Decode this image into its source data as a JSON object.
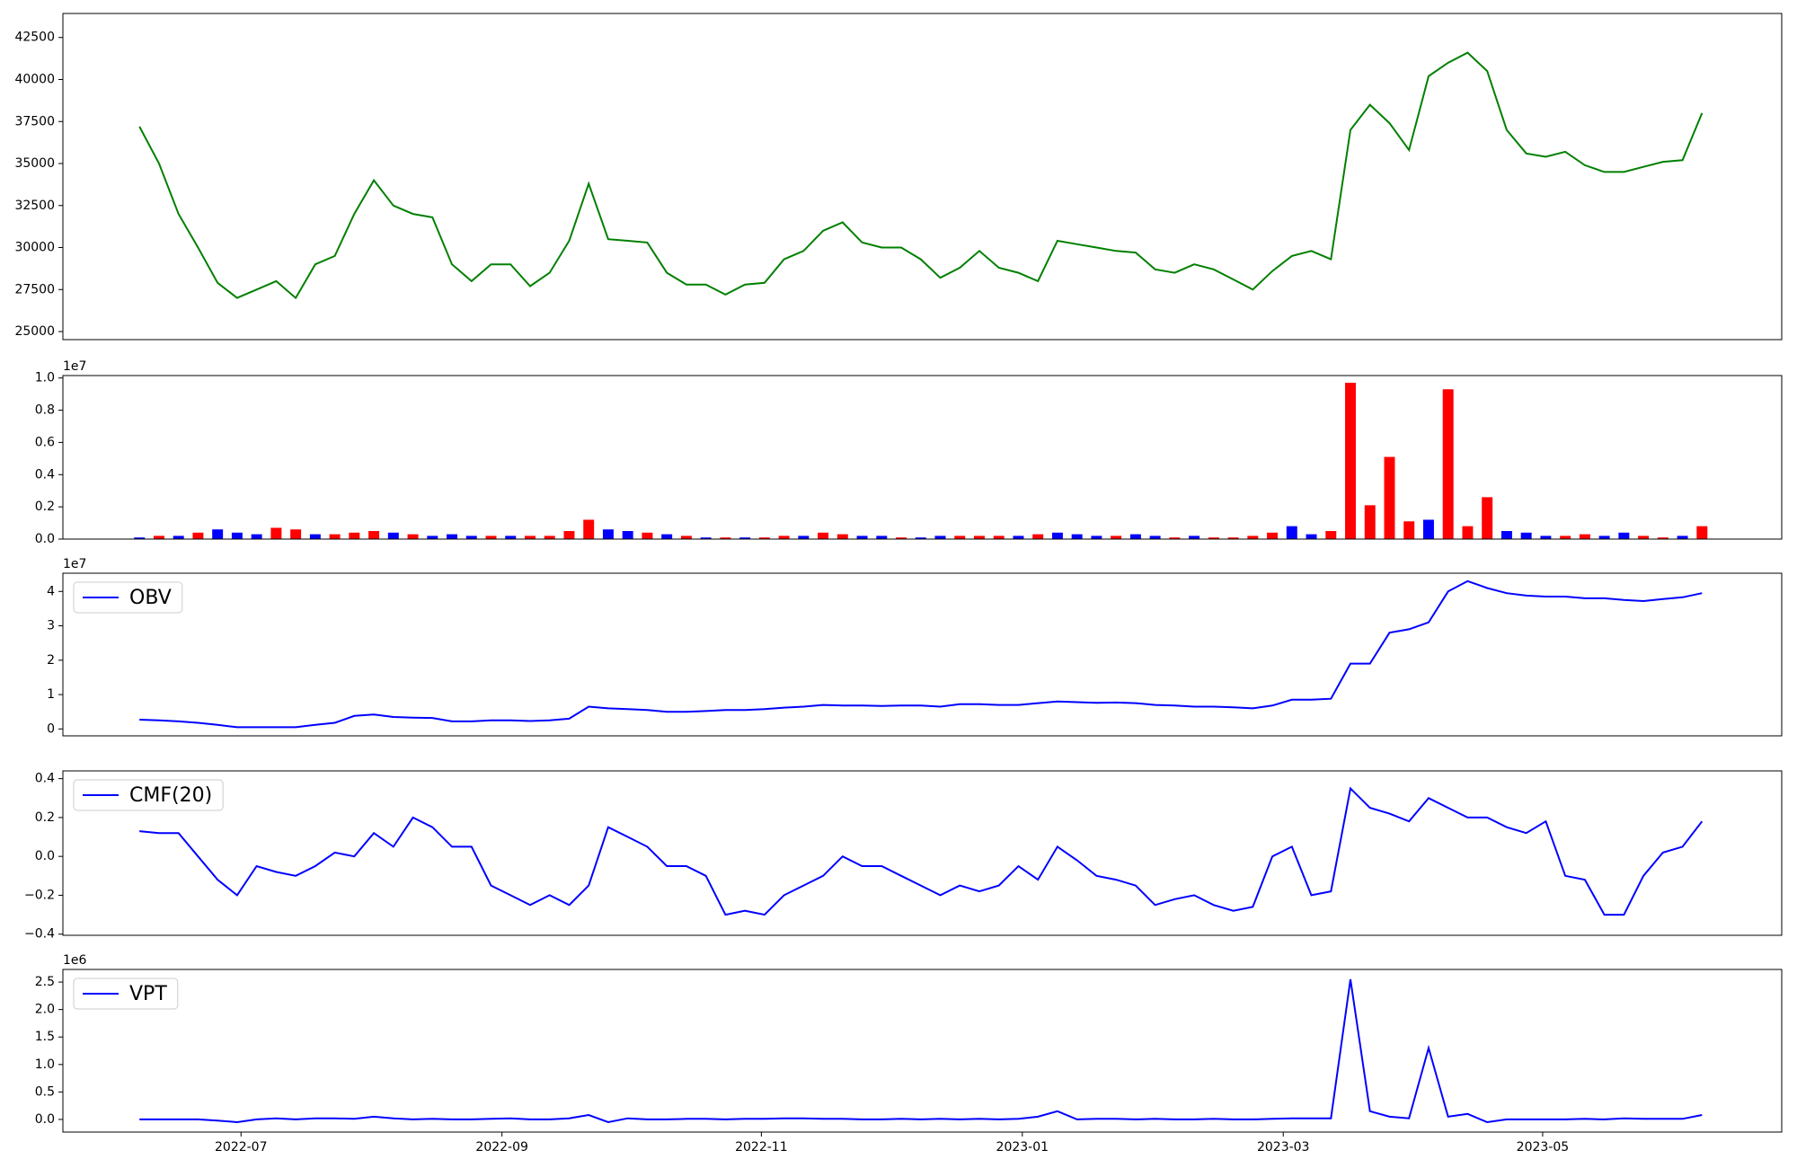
{
  "chart_data": [
    {
      "type": "line",
      "color": "green",
      "x": [
        2022.435,
        2022.4475,
        2022.46,
        2022.4725,
        2022.485,
        2022.4975,
        2022.51,
        2022.5225,
        2022.535,
        2022.5475,
        2022.56,
        2022.5725,
        2022.585,
        2022.5975,
        2022.61,
        2022.6225,
        2022.635,
        2022.6475,
        2022.66,
        2022.6725,
        2022.685,
        2022.6975,
        2022.71,
        2022.7225,
        2022.735,
        2022.7475,
        2022.76,
        2022.7725,
        2022.785,
        2022.7975,
        2022.81,
        2022.8225,
        2022.835,
        2022.8475,
        2022.86,
        2022.8725,
        2022.885,
        2022.8975,
        2022.91,
        2022.9225,
        2022.935,
        2022.9475,
        2022.96,
        2022.9725,
        2022.985,
        2022.9975,
        2023.01,
        2023.0225,
        2023.035,
        2023.0475,
        2023.06,
        2023.0725,
        2023.085,
        2023.0975,
        2023.11,
        2023.1225,
        2023.135,
        2023.1475,
        2023.16,
        2023.1725,
        2023.185,
        2023.1975,
        2023.21,
        2023.2225,
        2023.235,
        2023.2475,
        2023.26,
        2023.2725,
        2023.285,
        2023.2975,
        2023.31,
        2023.3225,
        2023.335,
        2023.3475,
        2023.36,
        2023.3725,
        2023.385,
        2023.3975,
        2023.41,
        2023.4225,
        2023.435
      ],
      "values": [
        37200,
        35000,
        32000,
        30000,
        27900,
        27000,
        27500,
        28000,
        27000,
        29000,
        29500,
        32000,
        34000,
        32500,
        32000,
        31800,
        29000,
        28000,
        29000,
        29000,
        27700,
        28500,
        30400,
        33800,
        30500,
        30400,
        30300,
        28500,
        27800,
        27800,
        27200,
        27800,
        27900,
        29300,
        29800,
        31000,
        31500,
        30300,
        30000,
        30000,
        29300,
        28200,
        28800,
        29800,
        28800,
        28500,
        28000,
        30400,
        30200,
        30000,
        29800,
        29700,
        28700,
        28500,
        29000,
        28700,
        28100,
        27500,
        28600,
        29500,
        29800,
        29300,
        37000,
        38500,
        37400,
        35800,
        40200,
        41000,
        41600,
        40500,
        37000,
        35600,
        35400,
        35700,
        34900,
        34500,
        34500,
        34800,
        35100,
        35200,
        38000
      ],
      "xlim": [
        2022.386,
        2023.486
      ],
      "ylim": [
        24520,
        43930
      ],
      "yticks": [
        25000,
        27500,
        30000,
        32500,
        35000,
        37500,
        40000,
        42500
      ]
    },
    {
      "type": "bar",
      "y_offset_label": "1e7",
      "x": [
        2022.435,
        2022.4475,
        2022.46,
        2022.4725,
        2022.485,
        2022.4975,
        2022.51,
        2022.5225,
        2022.535,
        2022.5475,
        2022.56,
        2022.5725,
        2022.585,
        2022.5975,
        2022.61,
        2022.6225,
        2022.635,
        2022.6475,
        2022.66,
        2022.6725,
        2022.685,
        2022.6975,
        2022.71,
        2022.7225,
        2022.735,
        2022.7475,
        2022.76,
        2022.7725,
        2022.785,
        2022.7975,
        2022.81,
        2022.8225,
        2022.835,
        2022.8475,
        2022.86,
        2022.8725,
        2022.885,
        2022.8975,
        2022.91,
        2022.9225,
        2022.935,
        2022.9475,
        2022.96,
        2022.9725,
        2022.985,
        2022.9975,
        2023.01,
        2023.0225,
        2023.035,
        2023.0475,
        2023.06,
        2023.0725,
        2023.085,
        2023.0975,
        2023.11,
        2023.1225,
        2023.135,
        2023.1475,
        2023.16,
        2023.1725,
        2023.185,
        2023.1975,
        2023.21,
        2023.2225,
        2023.235,
        2023.2475,
        2023.26,
        2023.2725,
        2023.285,
        2023.2975,
        2023.31,
        2023.3225,
        2023.335,
        2023.3475,
        2023.36,
        2023.3725,
        2023.385,
        2023.3975,
        2023.41,
        2023.4225,
        2023.435
      ],
      "values": [
        0.01,
        0.02,
        0.02,
        0.04,
        0.06,
        0.04,
        0.03,
        0.07,
        0.06,
        0.03,
        0.03,
        0.04,
        0.05,
        0.04,
        0.03,
        0.02,
        0.03,
        0.02,
        0.02,
        0.02,
        0.02,
        0.02,
        0.05,
        0.12,
        0.06,
        0.05,
        0.04,
        0.03,
        0.02,
        0.01,
        0.01,
        0.01,
        0.01,
        0.02,
        0.02,
        0.04,
        0.03,
        0.02,
        0.02,
        0.01,
        0.01,
        0.02,
        0.02,
        0.02,
        0.02,
        0.02,
        0.03,
        0.04,
        0.03,
        0.02,
        0.02,
        0.03,
        0.02,
        0.01,
        0.02,
        0.01,
        0.01,
        0.02,
        0.04,
        0.08,
        0.03,
        0.05,
        0.97,
        0.21,
        0.51,
        0.11,
        0.12,
        0.93,
        0.08,
        0.26,
        0.05,
        0.04,
        0.02,
        0.02,
        0.03,
        0.02,
        0.04,
        0.02,
        0.01,
        0.02,
        0.08
      ],
      "colors": [
        "blue",
        "red",
        "blue",
        "red",
        "blue",
        "blue",
        "blue",
        "red",
        "red",
        "blue",
        "red",
        "red",
        "red",
        "blue",
        "red",
        "blue",
        "blue",
        "blue",
        "red",
        "blue",
        "red",
        "red",
        "red",
        "red",
        "blue",
        "blue",
        "red",
        "blue",
        "red",
        "blue",
        "red",
        "blue",
        "red",
        "red",
        "blue",
        "red",
        "red",
        "blue",
        "blue",
        "red",
        "blue",
        "blue",
        "red",
        "red",
        "red",
        "blue",
        "red",
        "blue",
        "blue",
        "blue",
        "red",
        "blue",
        "blue",
        "red",
        "blue",
        "red",
        "red",
        "red",
        "red",
        "blue",
        "blue",
        "red",
        "red",
        "red",
        "red",
        "red",
        "blue",
        "red",
        "red",
        "red",
        "blue",
        "blue",
        "blue",
        "red",
        "red",
        "blue",
        "blue",
        "red",
        "red",
        "blue",
        "red"
      ],
      "xlim": [
        2022.386,
        2023.486
      ],
      "ylim": [
        0,
        1.015
      ],
      "yticks": [
        {
          "value": 0,
          "label": "0.0"
        },
        {
          "value": 0.2,
          "label": "0.2"
        },
        {
          "value": 0.4,
          "label": "0.4"
        },
        {
          "value": 0.6,
          "label": "0.6"
        },
        {
          "value": 0.8,
          "label": "0.8"
        },
        {
          "value": 1,
          "label": "1.0"
        }
      ]
    },
    {
      "type": "line",
      "y_offset_label": "1e7",
      "legend": "upper left",
      "x": [
        2022.435,
        2022.4475,
        2022.46,
        2022.4725,
        2022.485,
        2022.4975,
        2022.51,
        2022.5225,
        2022.535,
        2022.5475,
        2022.56,
        2022.5725,
        2022.585,
        2022.5975,
        2022.61,
        2022.6225,
        2022.635,
        2022.6475,
        2022.66,
        2022.6725,
        2022.685,
        2022.6975,
        2022.71,
        2022.7225,
        2022.735,
        2022.7475,
        2022.76,
        2022.7725,
        2022.785,
        2022.7975,
        2022.81,
        2022.8225,
        2022.835,
        2022.8475,
        2022.86,
        2022.8725,
        2022.885,
        2022.8975,
        2022.91,
        2022.9225,
        2022.935,
        2022.9475,
        2022.96,
        2022.9725,
        2022.985,
        2022.9975,
        2023.01,
        2023.0225,
        2023.035,
        2023.0475,
        2023.06,
        2023.0725,
        2023.085,
        2023.0975,
        2023.11,
        2023.1225,
        2023.135,
        2023.1475,
        2023.16,
        2023.1725,
        2023.185,
        2023.1975,
        2023.21,
        2023.2225,
        2023.235,
        2023.2475,
        2023.26,
        2023.2725,
        2023.285,
        2023.2975,
        2023.31,
        2023.3225,
        2023.335,
        2023.3475,
        2023.36,
        2023.3725,
        2023.385,
        2023.3975,
        2023.41,
        2023.4225,
        2023.435
      ],
      "series": [
        {
          "name": "OBV",
          "color": "blue",
          "values": [
            0.27,
            0.25,
            0.22,
            0.18,
            0.12,
            0.05,
            0.05,
            0.05,
            0.05,
            0.12,
            0.18,
            0.38,
            0.42,
            0.35,
            0.33,
            0.32,
            0.22,
            0.22,
            0.25,
            0.25,
            0.23,
            0.25,
            0.3,
            0.65,
            0.6,
            0.58,
            0.55,
            0.5,
            0.5,
            0.52,
            0.55,
            0.55,
            0.58,
            0.62,
            0.65,
            0.7,
            0.68,
            0.68,
            0.67,
            0.68,
            0.68,
            0.65,
            0.72,
            0.72,
            0.7,
            0.7,
            0.75,
            0.8,
            0.78,
            0.76,
            0.77,
            0.75,
            0.7,
            0.68,
            0.65,
            0.65,
            0.63,
            0.6,
            0.68,
            0.85,
            0.85,
            0.88,
            1.9,
            1.9,
            2.8,
            2.9,
            3.1,
            4.0,
            4.3,
            4.1,
            3.95,
            3.88,
            3.85,
            3.85,
            3.8,
            3.8,
            3.75,
            3.72,
            3.78,
            3.83,
            3.95
          ]
        }
      ],
      "xlim": [
        2022.386,
        2023.486
      ],
      "ylim": [
        -0.2,
        4.53
      ],
      "yticks": [
        0,
        1,
        2,
        3,
        4
      ]
    },
    {
      "type": "line",
      "legend": "upper left",
      "x": [
        2022.435,
        2022.4475,
        2022.46,
        2022.4725,
        2022.485,
        2022.4975,
        2022.51,
        2022.5225,
        2022.535,
        2022.5475,
        2022.56,
        2022.5725,
        2022.585,
        2022.5975,
        2022.61,
        2022.6225,
        2022.635,
        2022.6475,
        2022.66,
        2022.6725,
        2022.685,
        2022.6975,
        2022.71,
        2022.7225,
        2022.735,
        2022.7475,
        2022.76,
        2022.7725,
        2022.785,
        2022.7975,
        2022.81,
        2022.8225,
        2022.835,
        2022.8475,
        2022.86,
        2022.8725,
        2022.885,
        2022.8975,
        2022.91,
        2022.9225,
        2022.935,
        2022.9475,
        2022.96,
        2022.9725,
        2022.985,
        2022.9975,
        2023.01,
        2023.0225,
        2023.035,
        2023.0475,
        2023.06,
        2023.0725,
        2023.085,
        2023.0975,
        2023.11,
        2023.1225,
        2023.135,
        2023.1475,
        2023.16,
        2023.1725,
        2023.185,
        2023.1975,
        2023.21,
        2023.2225,
        2023.235,
        2023.2475,
        2023.26,
        2023.2725,
        2023.285,
        2023.2975,
        2023.31,
        2023.3225,
        2023.335,
        2023.3475,
        2023.36,
        2023.3725,
        2023.385,
        2023.3975,
        2023.41,
        2023.4225,
        2023.435
      ],
      "series": [
        {
          "name": "CMF(20)",
          "color": "blue",
          "values": [
            0.13,
            0.12,
            0.12,
            0,
            -0.12,
            -0.2,
            -0.05,
            -0.08,
            -0.1,
            -0.05,
            0.02,
            0,
            0.12,
            0.05,
            0.2,
            0.15,
            0.05,
            0.05,
            -0.15,
            -0.2,
            -0.25,
            -0.2,
            -0.25,
            -0.15,
            0.15,
            0.1,
            0.05,
            -0.05,
            -0.05,
            -0.1,
            -0.3,
            -0.28,
            -0.3,
            -0.2,
            -0.15,
            -0.1,
            0,
            -0.05,
            -0.05,
            -0.1,
            -0.15,
            -0.2,
            -0.15,
            -0.18,
            -0.15,
            -0.05,
            -0.12,
            0.05,
            -0.02,
            -0.1,
            -0.12,
            -0.15,
            -0.25,
            -0.22,
            -0.2,
            -0.25,
            -0.28,
            -0.26,
            0,
            0.05,
            -0.2,
            -0.18,
            0.35,
            0.25,
            0.22,
            0.18,
            0.3,
            0.25,
            0.2,
            0.2,
            0.15,
            0.12,
            0.18,
            -0.1,
            -0.12,
            -0.3,
            -0.3,
            -0.1,
            0.02,
            0.05,
            0.18
          ]
        }
      ],
      "xlim": [
        2022.386,
        2023.486
      ],
      "ylim": [
        -0.406,
        0.44
      ],
      "yticks": [
        {
          "value": -0.4,
          "label": "−0.4"
        },
        {
          "value": -0.2,
          "label": "−0.2"
        },
        {
          "value": 0,
          "label": "0.0"
        },
        {
          "value": 0.2,
          "label": "0.2"
        },
        {
          "value": 0.4,
          "label": "0.4"
        }
      ]
    },
    {
      "type": "line",
      "y_offset_label": "1e6",
      "legend": "upper left",
      "x": [
        2022.435,
        2022.4475,
        2022.46,
        2022.4725,
        2022.485,
        2022.4975,
        2022.51,
        2022.5225,
        2022.535,
        2022.5475,
        2022.56,
        2022.5725,
        2022.585,
        2022.5975,
        2022.61,
        2022.6225,
        2022.635,
        2022.6475,
        2022.66,
        2022.6725,
        2022.685,
        2022.6975,
        2022.71,
        2022.7225,
        2022.735,
        2022.7475,
        2022.76,
        2022.7725,
        2022.785,
        2022.7975,
        2022.81,
        2022.8225,
        2022.835,
        2022.8475,
        2022.86,
        2022.8725,
        2022.885,
        2022.8975,
        2022.91,
        2022.9225,
        2022.935,
        2022.9475,
        2022.96,
        2022.9725,
        2022.985,
        2022.9975,
        2023.01,
        2023.0225,
        2023.035,
        2023.0475,
        2023.06,
        2023.0725,
        2023.085,
        2023.0975,
        2023.11,
        2023.1225,
        2023.135,
        2023.1475,
        2023.16,
        2023.1725,
        2023.185,
        2023.1975,
        2023.21,
        2023.2225,
        2023.235,
        2023.2475,
        2023.26,
        2023.2725,
        2023.285,
        2023.2975,
        2023.31,
        2023.3225,
        2023.335,
        2023.3475,
        2023.36,
        2023.3725,
        2023.385,
        2023.3975,
        2023.41,
        2023.4225,
        2023.435
      ],
      "series": [
        {
          "name": "VPT",
          "color": "blue",
          "values": [
            0,
            0,
            0,
            0,
            -0.02,
            -0.05,
            0,
            0.02,
            0,
            0.02,
            0.02,
            0.01,
            0.05,
            0.02,
            0,
            0.01,
            0,
            0,
            0.01,
            0.02,
            0,
            0,
            0.02,
            0.08,
            -0.05,
            0.02,
            0,
            0,
            0.01,
            0.01,
            0,
            0.01,
            0.01,
            0.02,
            0.02,
            0.01,
            0.01,
            0,
            0,
            0.01,
            0,
            0.01,
            0,
            0.01,
            0,
            0.01,
            0.05,
            0.15,
            0,
            0.01,
            0.01,
            0,
            0.01,
            0,
            0,
            0.01,
            0,
            0,
            0.01,
            0.02,
            0.02,
            0.02,
            2.55,
            0.15,
            0.05,
            0.02,
            1.3,
            0.05,
            0.1,
            -0.05,
            0,
            0,
            0,
            0,
            0.01,
            0,
            0.02,
            0.01,
            0.01,
            0.01,
            0.08
          ]
        }
      ],
      "xlim": [
        2022.386,
        2023.486
      ],
      "ylim": [
        -0.23,
        2.73
      ],
      "yticks": [
        {
          "value": 0,
          "label": "0.0"
        },
        {
          "value": 0.5,
          "label": "0.5"
        },
        {
          "value": 1,
          "label": "1.0"
        },
        {
          "value": 1.5,
          "label": "1.5"
        },
        {
          "value": 2,
          "label": "2.0"
        },
        {
          "value": 2.5,
          "label": "2.5"
        }
      ],
      "xticks": [
        {
          "value": 2022.5,
          "label": "2022-07"
        },
        {
          "value": 2022.667,
          "label": "2022-09"
        },
        {
          "value": 2022.833,
          "label": "2022-11"
        },
        {
          "value": 2023.0,
          "label": "2023-01"
        },
        {
          "value": 2023.167,
          "label": "2023-03"
        },
        {
          "value": 2023.333,
          "label": "2023-05"
        }
      ]
    }
  ]
}
